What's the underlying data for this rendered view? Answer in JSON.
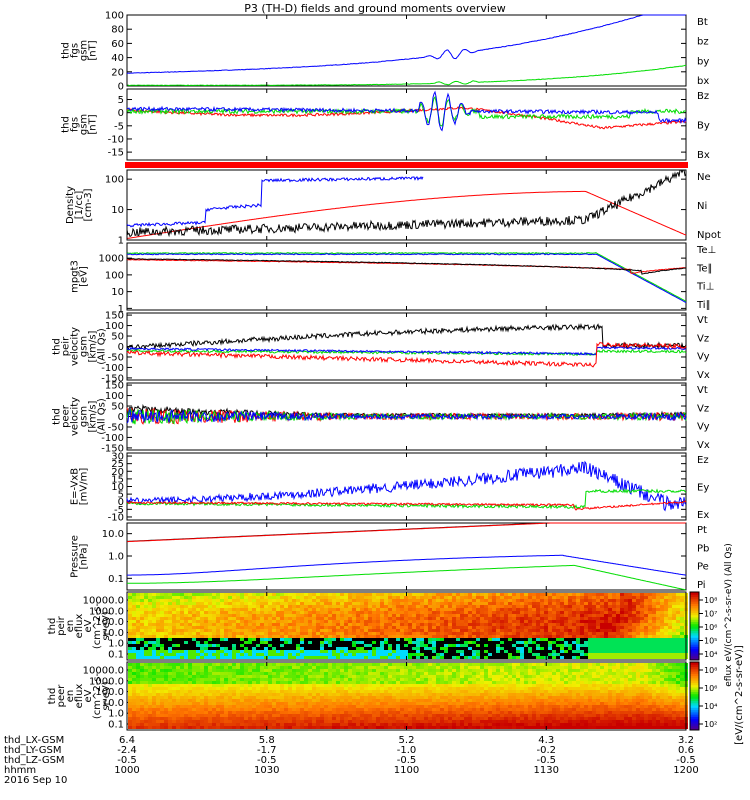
{
  "title": "P3 (TH-D) fields and ground moments overview",
  "colors": {
    "black": "#000000",
    "red": "#ff0000",
    "green": "#00dd00",
    "blue": "#0000ff"
  },
  "chart_data": [
    {
      "type": "line",
      "id": "fgs_bt",
      "ylabel": [
        "thd",
        "fgs",
        "gsm",
        "[nT]"
      ],
      "yticks": [
        "100",
        "80",
        "60",
        "40",
        "20",
        "0"
      ],
      "ylim": [
        0,
        100
      ],
      "legend": [
        {
          "name": "Bt",
          "color": "#000000"
        },
        {
          "name": "bz",
          "color": "#ff0000"
        },
        {
          "name": "by",
          "color": "#00dd00"
        },
        {
          "name": "bx",
          "color": "#0000ff"
        }
      ]
    },
    {
      "type": "line",
      "id": "fgs_comp",
      "ylabel": [
        "thd",
        "fgs",
        "gsm",
        "[nT]"
      ],
      "yticks": [
        "5",
        "0",
        "-5",
        "-10",
        "-15"
      ],
      "ylim": [
        -18,
        9
      ],
      "legend": [
        {
          "name": "Bz",
          "color": "#ff0000"
        },
        {
          "name": "By",
          "color": "#00dd00"
        },
        {
          "name": "Bx",
          "color": "#0000ff"
        }
      ]
    },
    {
      "type": "line",
      "id": "density",
      "ylabel": [
        "Density",
        "[1/cc]",
        "[cm-3]"
      ],
      "yticks": [
        "100",
        "10",
        "1"
      ],
      "ylim": [
        1,
        200
      ],
      "scale": "log",
      "legend": [
        {
          "name": "Ne",
          "color": "#ff0000"
        },
        {
          "name": "Ni",
          "color": "#000000"
        },
        {
          "name": "Npot",
          "color": "#0000ff"
        }
      ]
    },
    {
      "type": "line",
      "id": "temp",
      "ylabel": [
        "mpgt3",
        "[eV]"
      ],
      "yticks": [
        "1000",
        "100",
        "10",
        "1"
      ],
      "ylim": [
        0.8,
        8000
      ],
      "scale": "log",
      "legend": [
        {
          "name": "Te⊥",
          "color": "#ff0000"
        },
        {
          "name": "Te∥",
          "color": "#000000"
        },
        {
          "name": "Ti⊥",
          "color": "#00dd00"
        },
        {
          "name": "Ti∥",
          "color": "#00dd00"
        }
      ]
    },
    {
      "type": "line",
      "id": "peir_vel",
      "ylabel": [
        "thd",
        "peir",
        "velocity",
        "gsm",
        "[km/s]",
        "(All Qs)"
      ],
      "yticks": [
        "150",
        "100",
        "50",
        "0",
        "-50",
        "-100",
        "-150"
      ],
      "ylim": [
        -160,
        160
      ],
      "legend": [
        {
          "name": "Vt",
          "color": "#000000"
        },
        {
          "name": "Vz",
          "color": "#ff0000"
        },
        {
          "name": "Vy",
          "color": "#00dd00"
        },
        {
          "name": "Vx",
          "color": "#0000ff"
        }
      ]
    },
    {
      "type": "line",
      "id": "peer_vel",
      "ylabel": [
        "thd",
        "peer",
        "velocity",
        "gsm",
        "[km/s]",
        "(All Qs)"
      ],
      "yticks": [
        "150",
        "100",
        "50",
        "0",
        "-50",
        "-100",
        "-150"
      ],
      "ylim": [
        -160,
        160
      ],
      "legend": [
        {
          "name": "Vt",
          "color": "#000000"
        },
        {
          "name": "Vz",
          "color": "#ff0000"
        },
        {
          "name": "Vy",
          "color": "#00dd00"
        },
        {
          "name": "Vx",
          "color": "#0000ff"
        }
      ]
    },
    {
      "type": "line",
      "id": "efield",
      "ylabel": [
        "E=-VxB",
        "[mV/m]"
      ],
      "yticks": [
        "30",
        "25",
        "20",
        "15",
        "10",
        "5",
        "0",
        "-5",
        "-10"
      ],
      "ylim": [
        -12,
        32
      ],
      "legend": [
        {
          "name": "Ez",
          "color": "#ff0000"
        },
        {
          "name": "Ey",
          "color": "#00dd00"
        },
        {
          "name": "Ex",
          "color": "#0000ff"
        }
      ]
    },
    {
      "type": "line",
      "id": "pressure",
      "ylabel": [
        "Pressure",
        "[nPa]"
      ],
      "yticks": [
        "10.0",
        "1.0",
        "0.1"
      ],
      "ylim": [
        0.03,
        30
      ],
      "scale": "log",
      "legend": [
        {
          "name": "Pt",
          "color": "#000000"
        },
        {
          "name": "Pb",
          "color": "#ff0000"
        },
        {
          "name": "Pe",
          "color": "#00dd00"
        },
        {
          "name": "Pi",
          "color": "#0000ff"
        }
      ]
    },
    {
      "type": "heatmap",
      "id": "peir_en",
      "ylabel": [
        "thd",
        "peir",
        "en",
        "eflux",
        "eV",
        "(cm^2-s-",
        "sr-eV)"
      ],
      "yticks": [
        "10000.0",
        "1000.0",
        "100.0",
        "10.0",
        "1.0",
        "0.1"
      ],
      "scale": "log"
    },
    {
      "type": "heatmap",
      "id": "peer_en",
      "ylabel": [
        "thd",
        "peer",
        "en",
        "eflux",
        "eV",
        "(cm^2-s-",
        "sr-eV)"
      ],
      "yticks": [
        "10000.0",
        "1000.0",
        "100.0",
        "10.0",
        "1.0",
        "0.1"
      ],
      "scale": "log"
    }
  ],
  "colorbar": {
    "ticks_top": [
      "10^8",
      "10^7",
      "10^6",
      "10^5",
      "10^4"
    ],
    "ticks_bottom": [
      "10^8",
      "10^6",
      "10^4",
      "10^2"
    ],
    "label": "[eV/(cm^2-s-sr-eV)]",
    "label2": "eflux eV/(cm^2-s-sr-eV) (All Qs)"
  },
  "xaxis": {
    "rows": [
      {
        "label": "thd_LX-GSM",
        "values": [
          "6.4",
          "5.8",
          "5.2",
          "4.3",
          "3.2"
        ]
      },
      {
        "label": "thd_LY-GSM",
        "values": [
          "-2.4",
          "-1.7",
          "-1.0",
          "-0.2",
          "0.6"
        ]
      },
      {
        "label": "thd_LZ-GSM",
        "values": [
          "-0.5",
          "-0.5",
          "-0.5",
          "-0.5",
          "-0.5"
        ]
      },
      {
        "label": "hhmm",
        "values": [
          "1000",
          "1030",
          "1100",
          "1130",
          "1200"
        ]
      }
    ],
    "date": "2016 Sep 10"
  }
}
